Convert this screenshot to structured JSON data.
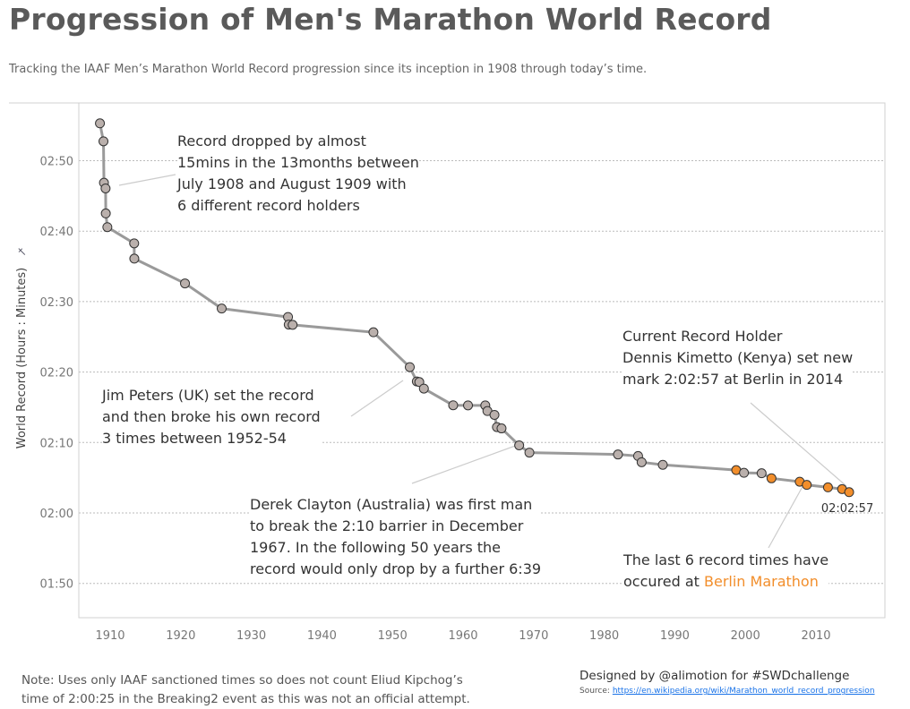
{
  "title": "Progression of Men's Marathon World Record",
  "subtitle": "Tracking the IAAF Men’s Marathon World Record progression since its inception in 1908 through today’s time.",
  "colors": {
    "default_point": "#bab0ac",
    "berlin_point": "#f28e2b",
    "line": "#9a9a9a"
  },
  "chart_data": {
    "type": "line",
    "ylabel": "World Record (Hours : Minutes)",
    "ylabel_icon": "pin-icon",
    "xlim": [
      1905,
      2020
    ],
    "ylim": [
      "01:45",
      "02:58"
    ],
    "x_ticks": [
      "1910",
      "1920",
      "1930",
      "1940",
      "1950",
      "1960",
      "1970",
      "1980",
      "1990",
      "2000",
      "2010"
    ],
    "y_ticks": [
      "02:50",
      "02:40",
      "02:30",
      "02:20",
      "02:10",
      "02:00",
      "01:50"
    ],
    "grid": "horizontal dotted",
    "points": [
      {
        "year": 1908.55,
        "time": "2:55:18",
        "berlin": false
      },
      {
        "year": 1909.05,
        "time": "2:52:45",
        "berlin": false
      },
      {
        "year": 1909.12,
        "time": "2:46:52",
        "berlin": false
      },
      {
        "year": 1909.35,
        "time": "2:46:04",
        "berlin": false
      },
      {
        "year": 1909.38,
        "time": "2:42:31",
        "berlin": false
      },
      {
        "year": 1909.6,
        "time": "2:40:34",
        "berlin": false
      },
      {
        "year": 1913.4,
        "time": "2:38:16",
        "berlin": false
      },
      {
        "year": 1913.42,
        "time": "2:36:06",
        "berlin": false
      },
      {
        "year": 1920.6,
        "time": "2:32:35",
        "berlin": false
      },
      {
        "year": 1925.8,
        "time": "2:29:01",
        "berlin": false
      },
      {
        "year": 1935.2,
        "time": "2:27:49",
        "berlin": false
      },
      {
        "year": 1935.3,
        "time": "2:26:44",
        "berlin": false
      },
      {
        "year": 1935.85,
        "time": "2:26:42",
        "berlin": false
      },
      {
        "year": 1947.3,
        "time": "2:25:39",
        "berlin": false
      },
      {
        "year": 1952.45,
        "time": "2:20:42",
        "berlin": false
      },
      {
        "year": 1953.45,
        "time": "2:18:40",
        "berlin": false
      },
      {
        "year": 1953.8,
        "time": "2:18:35",
        "berlin": false
      },
      {
        "year": 1954.45,
        "time": "2:17:39",
        "berlin": false
      },
      {
        "year": 1958.6,
        "time": "2:15:17",
        "berlin": false
      },
      {
        "year": 1960.7,
        "time": "2:15:16",
        "berlin": false
      },
      {
        "year": 1963.15,
        "time": "2:15:16",
        "berlin": false
      },
      {
        "year": 1963.45,
        "time": "2:14:28",
        "berlin": false
      },
      {
        "year": 1964.45,
        "time": "2:13:55",
        "berlin": false
      },
      {
        "year": 1964.8,
        "time": "2:12:11",
        "berlin": false
      },
      {
        "year": 1965.45,
        "time": "2:12:00",
        "berlin": false
      },
      {
        "year": 1967.95,
        "time": "2:09:36",
        "berlin": false
      },
      {
        "year": 1969.4,
        "time": "2:08:34",
        "berlin": false
      },
      {
        "year": 1981.95,
        "time": "2:08:18",
        "berlin": false
      },
      {
        "year": 1984.8,
        "time": "2:08:05",
        "berlin": false
      },
      {
        "year": 1985.3,
        "time": "2:07:12",
        "berlin": false
      },
      {
        "year": 1988.3,
        "time": "2:06:50",
        "berlin": false
      },
      {
        "year": 1998.7,
        "time": "2:06:05",
        "berlin": true
      },
      {
        "year": 1999.8,
        "time": "2:05:42",
        "berlin": false
      },
      {
        "year": 2002.3,
        "time": "2:05:38",
        "berlin": false
      },
      {
        "year": 2003.7,
        "time": "2:04:55",
        "berlin": true
      },
      {
        "year": 2007.7,
        "time": "2:04:26",
        "berlin": true
      },
      {
        "year": 2008.7,
        "time": "2:03:59",
        "berlin": true
      },
      {
        "year": 2011.7,
        "time": "2:03:38",
        "berlin": true
      },
      {
        "year": 2013.7,
        "time": "2:03:23",
        "berlin": true
      },
      {
        "year": 2014.7,
        "time": "2:02:57",
        "berlin": true
      }
    ],
    "last_label": "02:02:57",
    "annotations": {
      "early": [
        "Record dropped by almost",
        "15mins in the 13months between",
        "July 1908 and August 1909 with",
        "6 different record holders"
      ],
      "peters": [
        "Jim Peters (UK) set the record",
        "and then broke his own record",
        "3 times between 1952-54"
      ],
      "clayton": [
        "Derek Clayton (Australia) was first man",
        "to break the 2:10 barrier in December",
        "1967. In the following 50 years the",
        "record would only drop by a further 6:39"
      ],
      "current": [
        "Current Record Holder",
        "Dennis Kimetto (Kenya) set new",
        "mark 2:02:57 at Berlin in 2014"
      ],
      "berlin_line1": "The last 6 record times have",
      "berlin_line2_prefix": "occured at ",
      "berlin_highlight": "Berlin Marathon"
    }
  },
  "footer": {
    "note_line1": "Note: Uses only IAAF sanctioned times so does not count Eliud Kipchog’s",
    "note_line2": "time of 2:00:25 in the Breaking2 event as this was not an official attempt.",
    "credit": "Designed by @alimotion for #SWDchallenge",
    "source_label": "Source: ",
    "source_link": "https://en.wikipedia.org/wiki/Marathon_world_record_progression"
  }
}
